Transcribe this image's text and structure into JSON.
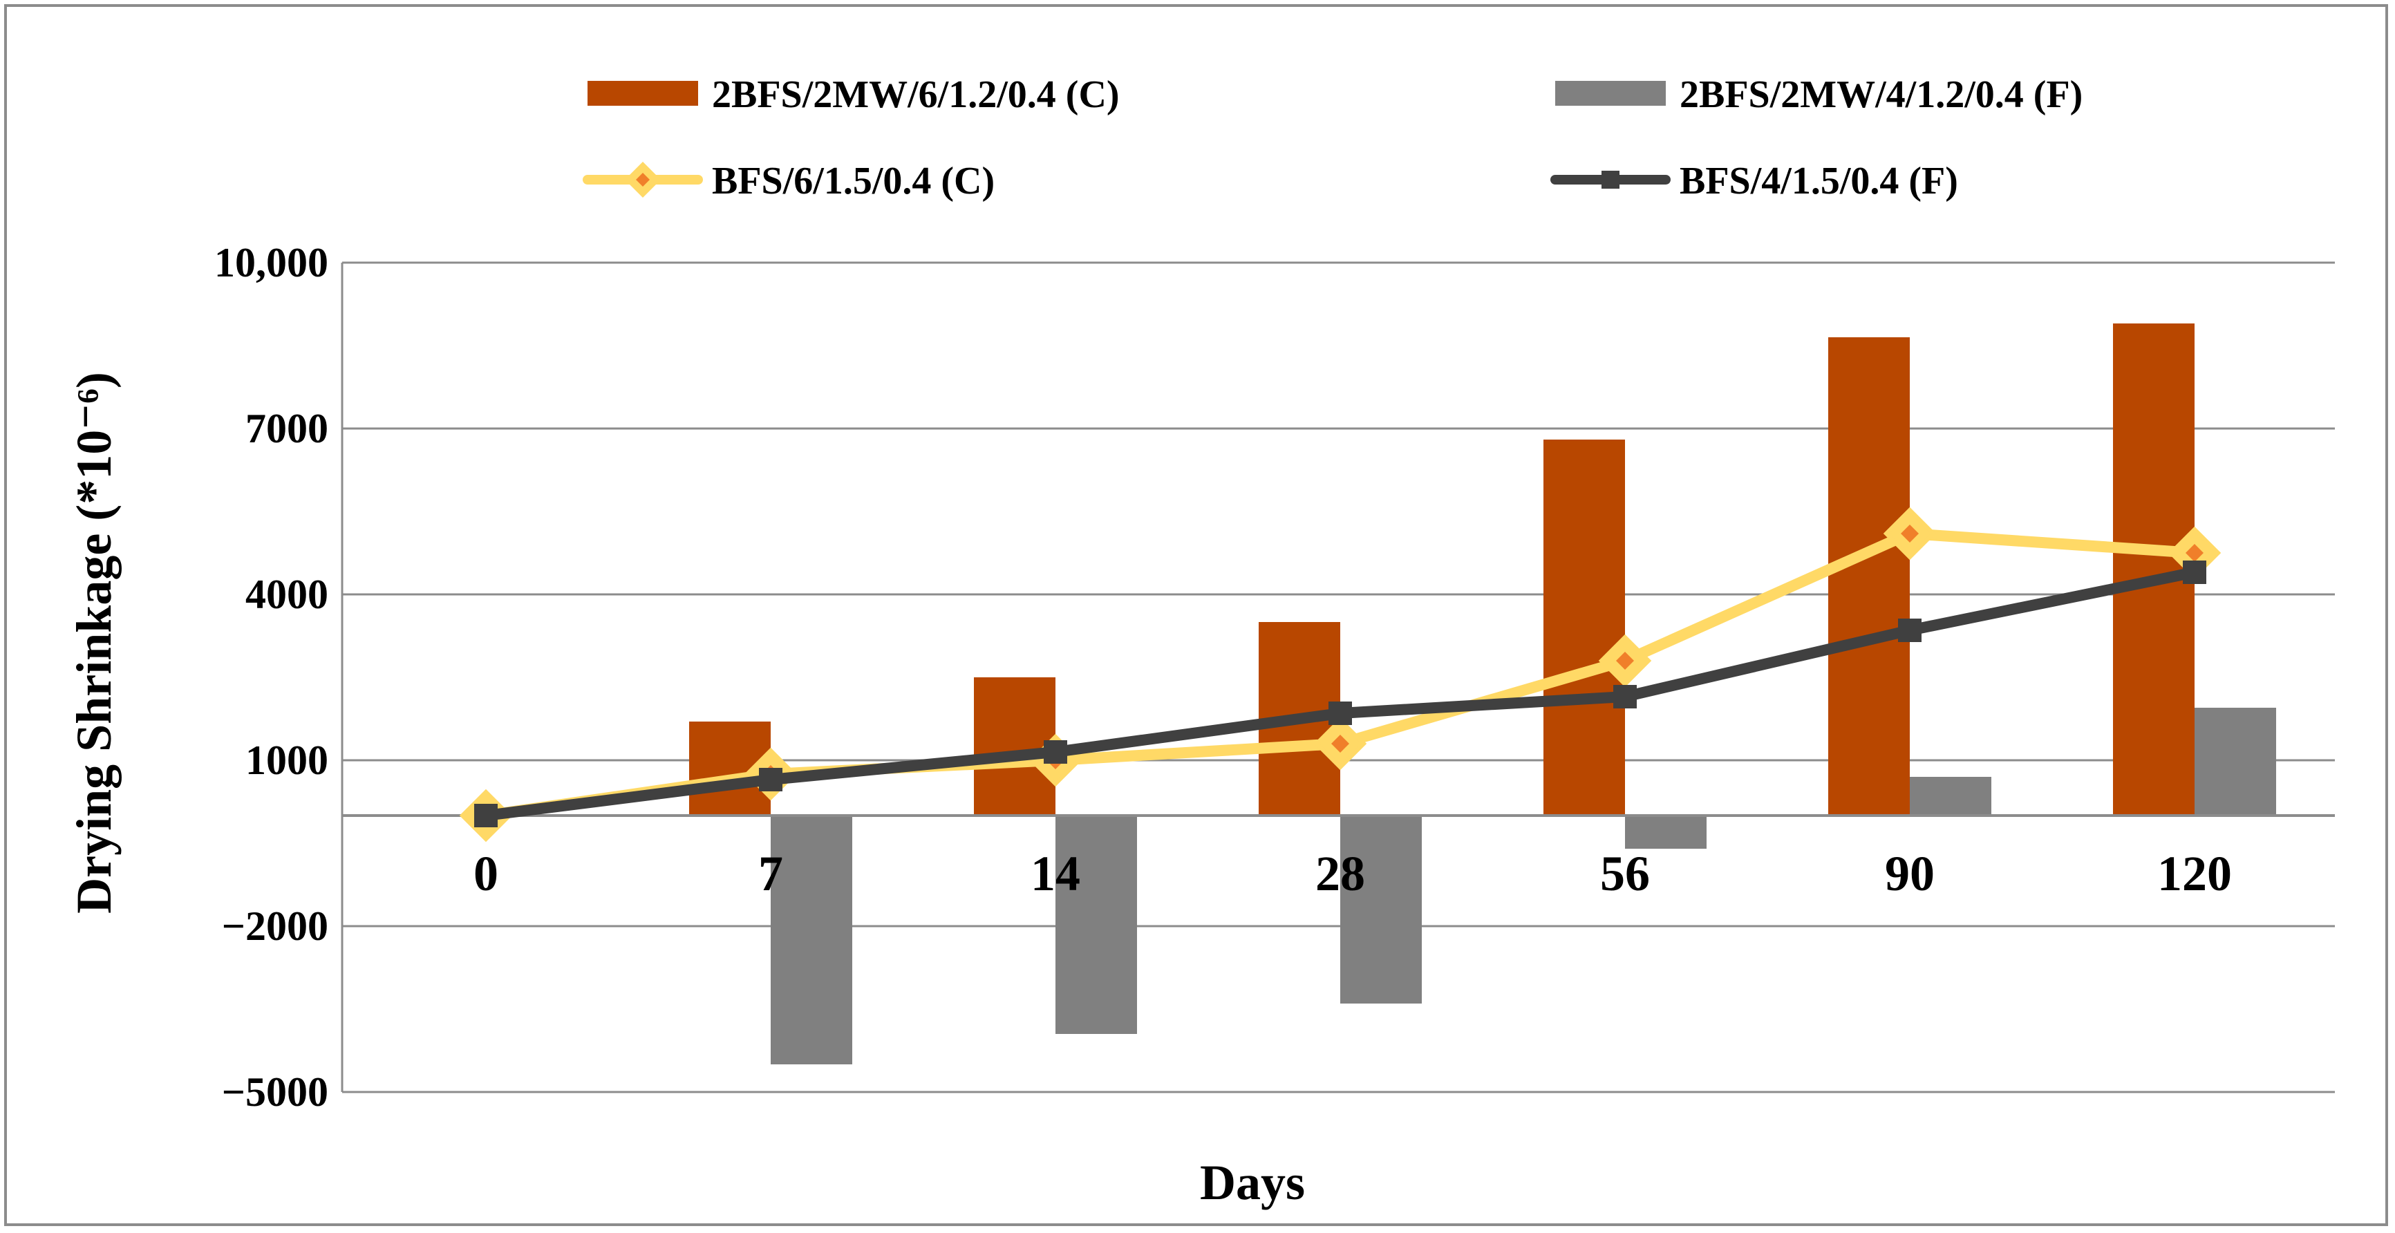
{
  "chart_data": {
    "type": "bar",
    "title": "",
    "xlabel": "Days",
    "ylabel": "Drying Shrinkage (*10⁻⁶)",
    "categories": [
      "0",
      "7",
      "14",
      "28",
      "56",
      "90",
      "120"
    ],
    "ylim": [
      -5000,
      10000
    ],
    "yticks": [
      10000,
      7000,
      4000,
      1000,
      -2000,
      -5000
    ],
    "ytick_labels": [
      "10,000",
      "7000",
      "4000",
      "1000",
      "−2000",
      "−5000"
    ],
    "grid": true,
    "legend_position": "top",
    "series": [
      {
        "name": "2BFS/2MW/6/1.2/0.4 (C)",
        "kind": "bar",
        "color": "#b84700",
        "values": [
          0,
          1700,
          2500,
          3500,
          6800,
          8650,
          8900
        ]
      },
      {
        "name": "2BFS/2MW/4/1.2/0.4 (F)",
        "kind": "bar",
        "color": "#808080",
        "values": [
          0,
          -4500,
          -3950,
          -3400,
          -600,
          700,
          1950
        ]
      },
      {
        "name": "BFS/6/1.5/0.4 (C)",
        "kind": "line",
        "marker": "diamond",
        "color": "#ffd966",
        "marker_fill": "#f07f2a",
        "values": [
          0,
          750,
          1000,
          1300,
          2800,
          5100,
          4750
        ]
      },
      {
        "name": "BFS/4/1.5/0.4 (F)",
        "kind": "line",
        "marker": "square",
        "color": "#404040",
        "values": [
          0,
          650,
          1150,
          1850,
          2150,
          3350,
          4400
        ]
      }
    ]
  }
}
